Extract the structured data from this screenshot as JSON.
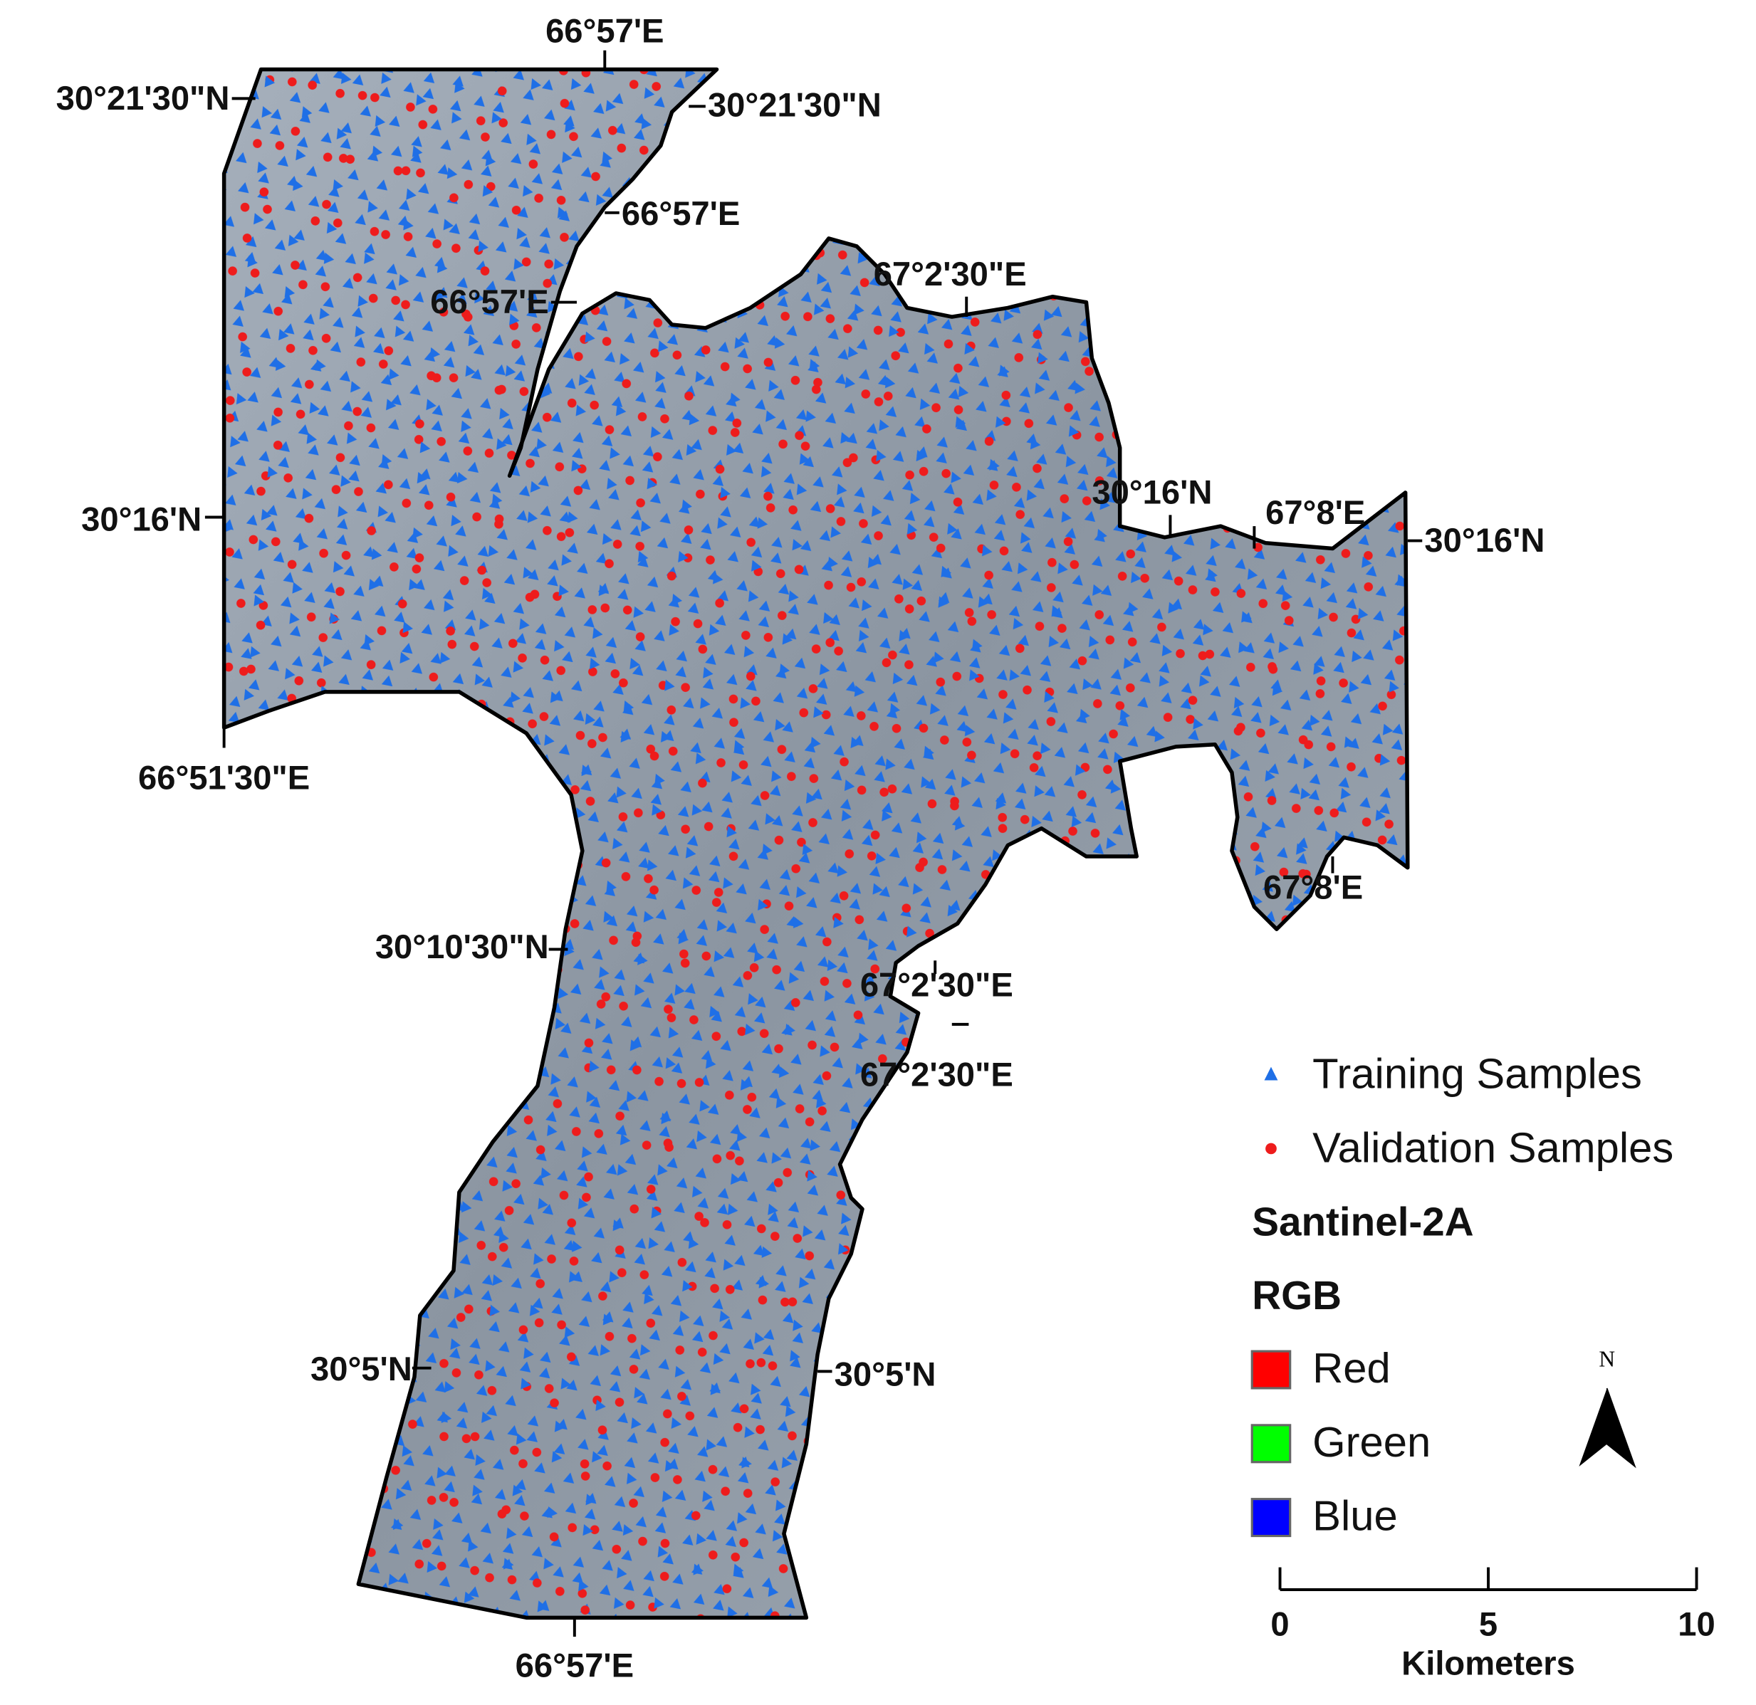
{
  "map": {
    "labels": [
      "66°57'E",
      "30°21'30\"N",
      "30°21'30\"N",
      "66°57'E",
      "66°57'E",
      "67°2'30\"E",
      "30°16'N",
      "66°51'30\"E",
      "30°16'N",
      "67°8'E",
      "30°16'N",
      "67°8'E",
      "30°10'30\"N",
      "67°2'30\"E",
      "67°2'30\"E",
      "30°5'N",
      "30°5'N",
      "66°57'E"
    ]
  },
  "legend": {
    "samples": [
      {
        "name": "Training Samples",
        "color": "#1f6fe6",
        "marker": "triangle"
      },
      {
        "name": "Validation Samples",
        "color": "#ee1c1c",
        "marker": "circle"
      }
    ],
    "title": "Santinel-2A",
    "subtitle": "RGB",
    "bands": [
      {
        "name": "Red",
        "color": "#ff0000"
      },
      {
        "name": "Green",
        "color": "#00ff00"
      },
      {
        "name": "Blue",
        "color": "#0000ff"
      }
    ]
  },
  "north": "N",
  "scale_bar": {
    "xlim": [
      0,
      10
    ],
    "ticks": [
      0,
      5,
      10
    ],
    "unit": "Kilometers"
  }
}
